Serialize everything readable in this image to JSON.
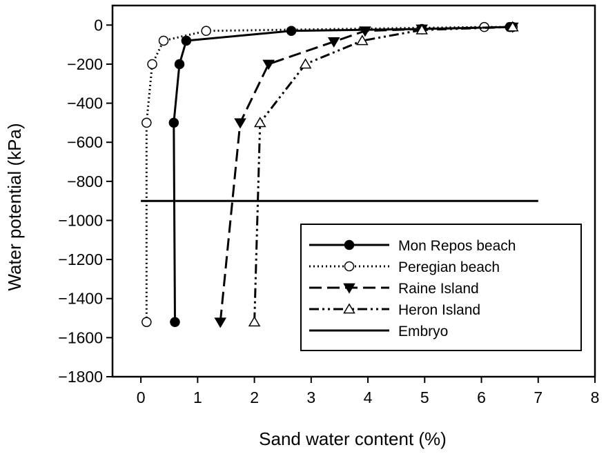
{
  "chart_data": {
    "type": "line",
    "title": "",
    "xlabel": "Sand water content (%)",
    "ylabel": "Water potential (kPa)",
    "xlim": [
      -0.5,
      8
    ],
    "ylim": [
      -1800,
      100
    ],
    "xticks": [
      0,
      1,
      2,
      3,
      4,
      5,
      6,
      7,
      8
    ],
    "yticks": [
      0,
      -200,
      -400,
      -600,
      -800,
      -1000,
      -1200,
      -1400,
      -1600,
      -1800
    ],
    "xtick_labels": [
      "0",
      "1",
      "2",
      "3",
      "4",
      "5",
      "6",
      "7",
      "8"
    ],
    "ytick_labels": [
      "0",
      "−200",
      "−400",
      "−600",
      "−800",
      "−1000",
      "−1200",
      "−1400",
      "−1600",
      "−1800"
    ],
    "grid": false,
    "legend_position": "lower-right",
    "series": [
      {
        "name": "Mon Repos beach",
        "marker": "filled-circle",
        "line": "solid",
        "points": [
          [
            0.6,
            -1520
          ],
          [
            0.58,
            -500
          ],
          [
            0.68,
            -200
          ],
          [
            0.8,
            -80
          ],
          [
            2.65,
            -30
          ],
          [
            4.95,
            -20
          ],
          [
            6.5,
            -10
          ]
        ]
      },
      {
        "name": "Peregian beach",
        "marker": "open-circle",
        "line": "dotted",
        "points": [
          [
            0.1,
            -1520
          ],
          [
            0.1,
            -500
          ],
          [
            0.2,
            -200
          ],
          [
            0.4,
            -80
          ],
          [
            1.15,
            -30
          ],
          [
            6.05,
            -10
          ],
          [
            6.55,
            -10
          ]
        ]
      },
      {
        "name": "Raine Island",
        "marker": "filled-triangle-down",
        "line": "dashed",
        "points": [
          [
            1.4,
            -1520
          ],
          [
            1.75,
            -500
          ],
          [
            2.25,
            -200
          ],
          [
            3.4,
            -85
          ],
          [
            3.95,
            -30
          ],
          [
            4.95,
            -20
          ],
          [
            6.55,
            -10
          ]
        ]
      },
      {
        "name": "Heron Island",
        "marker": "open-triangle-up",
        "line": "dash-dot-dot",
        "points": [
          [
            2.0,
            -1520
          ],
          [
            2.1,
            -500
          ],
          [
            2.9,
            -200
          ],
          [
            3.9,
            -80
          ],
          [
            4.95,
            -25
          ],
          [
            6.55,
            -10
          ]
        ]
      },
      {
        "name": "Embryo",
        "marker": "none",
        "line": "solid",
        "points": [
          [
            0.0,
            -900
          ],
          [
            7.0,
            -900
          ]
        ]
      }
    ]
  }
}
